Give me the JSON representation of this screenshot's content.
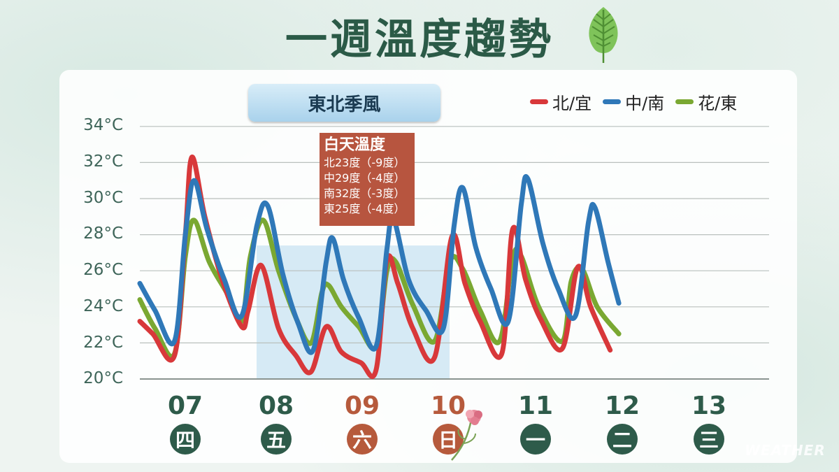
{
  "title": "一週溫度趨勢",
  "badge": "東北季風",
  "legend": [
    {
      "name": "北/宜",
      "color": "#d8383a"
    },
    {
      "name": "中/南",
      "color": "#2f78b8"
    },
    {
      "name": "花/東",
      "color": "#7aa832"
    }
  ],
  "info": {
    "header": "白天溫度",
    "lines": [
      "北23度（-9度）",
      "中29度（-4度）",
      "南32度（-3度）",
      "東25度（-4度）"
    ]
  },
  "days": [
    {
      "date": "07",
      "weekday": "四",
      "weekend": false
    },
    {
      "date": "08",
      "weekday": "五",
      "weekend": false
    },
    {
      "date": "09",
      "weekday": "六",
      "weekend": true
    },
    {
      "date": "10",
      "weekday": "日",
      "weekend": true
    },
    {
      "date": "11",
      "weekday": "一",
      "weekend": false
    },
    {
      "date": "12",
      "weekday": "二",
      "weekend": false
    },
    {
      "date": "13",
      "weekday": "三",
      "weekend": false
    }
  ],
  "watermark": "WEATHER",
  "chart_data": {
    "type": "line",
    "ylim": [
      20,
      34
    ],
    "yticks": [
      "20°C",
      "22°C",
      "24°C",
      "26°C",
      "28°C",
      "30°C",
      "32°C",
      "34°C"
    ],
    "highlight_range": [
      "08",
      "10"
    ],
    "series": [
      {
        "name": "北/宜",
        "color": "#d8383a",
        "points": [
          [
            0,
            23.2
          ],
          [
            0.3,
            22.5
          ],
          [
            0.8,
            21.3
          ],
          [
            1.05,
            28
          ],
          [
            1.2,
            32.3
          ],
          [
            1.5,
            29
          ],
          [
            1.9,
            25.5
          ],
          [
            2.35,
            22.9
          ],
          [
            2.5,
            23.8
          ],
          [
            2.8,
            26.3
          ],
          [
            3.2,
            22.8
          ],
          [
            3.6,
            21.3
          ],
          [
            3.95,
            20.4
          ],
          [
            4.3,
            22.9
          ],
          [
            4.65,
            21.5
          ],
          [
            5.1,
            20.9
          ],
          [
            5.45,
            20.5
          ],
          [
            5.7,
            26.6
          ],
          [
            5.95,
            25.3
          ],
          [
            6.3,
            22.8
          ],
          [
            6.8,
            21.2
          ],
          [
            7.2,
            27.9
          ],
          [
            7.5,
            25.3
          ],
          [
            7.85,
            23.2
          ],
          [
            8.35,
            21.4
          ],
          [
            8.6,
            28.3
          ],
          [
            8.9,
            25.5
          ],
          [
            9.25,
            23.3
          ],
          [
            9.75,
            21.7
          ],
          [
            10.1,
            26.2
          ],
          [
            10.4,
            24
          ],
          [
            10.85,
            21.6
          ]
        ]
      },
      {
        "name": "中/南",
        "color": "#2f78b8",
        "points": [
          [
            0,
            25.3
          ],
          [
            0.35,
            23.8
          ],
          [
            0.8,
            22.1
          ],
          [
            1.05,
            28
          ],
          [
            1.25,
            31
          ],
          [
            1.55,
            28.3
          ],
          [
            1.95,
            25.5
          ],
          [
            2.35,
            23.5
          ],
          [
            2.7,
            28.5
          ],
          [
            2.95,
            29.6
          ],
          [
            3.3,
            25.8
          ],
          [
            3.65,
            23.1
          ],
          [
            4.0,
            21.6
          ],
          [
            4.3,
            26.5
          ],
          [
            4.45,
            27.8
          ],
          [
            4.7,
            25.5
          ],
          [
            5.05,
            23.4
          ],
          [
            5.45,
            21.8
          ],
          [
            5.7,
            27.2
          ],
          [
            5.85,
            28.9
          ],
          [
            6.2,
            25.5
          ],
          [
            6.6,
            23.8
          ],
          [
            7.0,
            22.8
          ],
          [
            7.25,
            28.5
          ],
          [
            7.45,
            30.6
          ],
          [
            7.75,
            27.3
          ],
          [
            8.1,
            25
          ],
          [
            8.5,
            23.2
          ],
          [
            8.8,
            29.7
          ],
          [
            8.95,
            31.1
          ],
          [
            9.3,
            27.5
          ],
          [
            9.65,
            25
          ],
          [
            10.05,
            23.5
          ],
          [
            10.35,
            28.7
          ],
          [
            10.5,
            29.5
          ],
          [
            10.8,
            26.5
          ],
          [
            11.05,
            24.2
          ]
        ]
      },
      {
        "name": "花/東",
        "color": "#7aa832",
        "points": [
          [
            0,
            24.4
          ],
          [
            0.35,
            22.8
          ],
          [
            0.8,
            21.4
          ],
          [
            1.05,
            26.8
          ],
          [
            1.25,
            28.8
          ],
          [
            1.6,
            26.5
          ],
          [
            2.0,
            24.8
          ],
          [
            2.35,
            23.2
          ],
          [
            2.55,
            26.8
          ],
          [
            2.85,
            28.8
          ],
          [
            3.2,
            26
          ],
          [
            3.6,
            23.4
          ],
          [
            3.95,
            22.0
          ],
          [
            4.2,
            24.8
          ],
          [
            4.35,
            25.2
          ],
          [
            4.65,
            24
          ],
          [
            5.05,
            22.9
          ],
          [
            5.45,
            21.8
          ],
          [
            5.7,
            26
          ],
          [
            5.9,
            26.5
          ],
          [
            6.3,
            24.1
          ],
          [
            6.8,
            22.1
          ],
          [
            7.15,
            26.5
          ],
          [
            7.45,
            26.1
          ],
          [
            7.85,
            23.8
          ],
          [
            8.3,
            22.1
          ],
          [
            8.6,
            26.7
          ],
          [
            8.8,
            26.8
          ],
          [
            9.2,
            24
          ],
          [
            9.75,
            22.1
          ],
          [
            9.95,
            25.4
          ],
          [
            10.2,
            26.1
          ],
          [
            10.55,
            24
          ],
          [
            11.05,
            22.5
          ]
        ]
      }
    ]
  }
}
